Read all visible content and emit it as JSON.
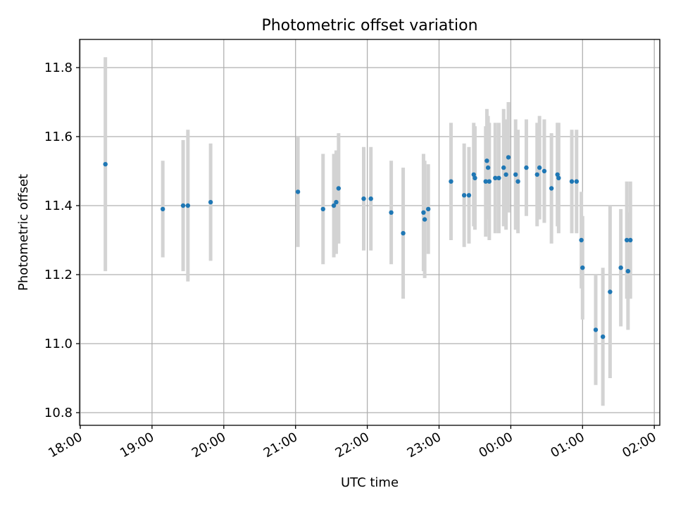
{
  "chart_data": {
    "type": "scatter",
    "title": "Photometric offset variation",
    "xlabel": "UTC time",
    "ylabel": "Photometric offset",
    "x_ticks": [
      "18:00",
      "19:00",
      "20:00",
      "21:00",
      "22:00",
      "23:00",
      "00:00",
      "01:00",
      "02:00"
    ],
    "y_ticks": [
      10.8,
      11.0,
      11.2,
      11.4,
      11.6,
      11.8
    ],
    "xlim": [
      0,
      480
    ],
    "ylim": [
      10.77,
      11.88
    ],
    "grid": true,
    "colors": {
      "point": "#1f77b4",
      "errorbar": "#d3d3d3"
    },
    "x": [
      21,
      69,
      86,
      90,
      109,
      182,
      203,
      212,
      214,
      216,
      237,
      243,
      260,
      270,
      287,
      288,
      291,
      310,
      321,
      325,
      329,
      330,
      339,
      340,
      341,
      342,
      347,
      350,
      354,
      356,
      358,
      364,
      366,
      373,
      382,
      384,
      388,
      394,
      399,
      400,
      411,
      415,
      419,
      420,
      431,
      437,
      443,
      452,
      457,
      458,
      460
    ],
    "y": [
      11.52,
      11.39,
      11.4,
      11.4,
      11.41,
      11.44,
      11.39,
      11.4,
      11.41,
      11.45,
      11.42,
      11.42,
      11.38,
      11.32,
      11.38,
      11.36,
      11.39,
      11.47,
      11.43,
      11.43,
      11.49,
      11.48,
      11.47,
      11.53,
      11.51,
      11.47,
      11.48,
      11.48,
      11.51,
      11.49,
      11.54,
      11.49,
      11.47,
      11.51,
      11.49,
      11.51,
      11.5,
      11.45,
      11.49,
      11.48,
      11.47,
      11.47,
      11.3,
      11.22,
      11.04,
      11.02,
      11.15,
      11.22,
      11.3,
      11.21,
      11.3
    ],
    "y_err": [
      0.31,
      0.14,
      0.19,
      0.22,
      0.17,
      0.16,
      0.16,
      0.15,
      0.15,
      0.16,
      0.15,
      0.15,
      0.15,
      0.19,
      0.17,
      0.17,
      0.13,
      0.17,
      0.15,
      0.14,
      0.15,
      0.15,
      0.16,
      0.15,
      0.15,
      0.17,
      0.16,
      0.16,
      0.17,
      0.16,
      0.16,
      0.16,
      0.15,
      0.14,
      0.15,
      0.15,
      0.15,
      0.16,
      0.15,
      0.16,
      0.15,
      0.15,
      0.14,
      0.15,
      0.16,
      0.2,
      0.25,
      0.17,
      0.17,
      0.17,
      0.17
    ]
  }
}
